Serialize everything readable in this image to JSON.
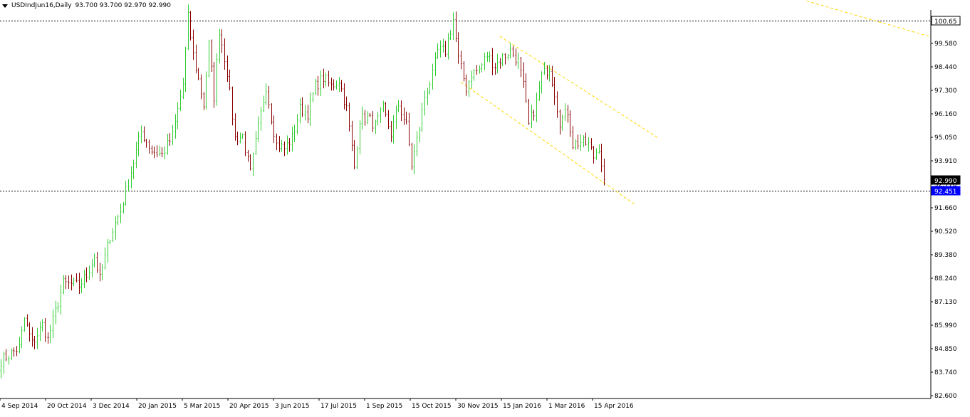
{
  "header": {
    "symbol_timeframe": "USDIndJun16,Daily",
    "ohlc": "93.700 93.700 92.970 92.990"
  },
  "colors": {
    "bull": "#32cd32",
    "bear": "#8b0000",
    "trendline": "#ffd700",
    "price_tag_bg": "#0000ff",
    "current_tag_bg": "#000000",
    "hline": "#000000"
  },
  "chart_data": {
    "type": "ohlc",
    "symbol": "USDIndJun16",
    "timeframe": "Daily",
    "y_axis_labels": [
      "100.65",
      "99.580",
      "98.440",
      "97.300",
      "96.160",
      "95.050",
      "93.910",
      "92.770",
      "91.660",
      "90.520",
      "89.380",
      "88.240",
      "87.130",
      "85.990",
      "84.850",
      "83.740",
      "82.600"
    ],
    "x_axis_labels": [
      "4 Sep 2014",
      "20 Oct 2014",
      "3 Dec 2014",
      "20 Jan 2015",
      "5 Mar 2015",
      "20 Apr 2015",
      "3 Jun 2015",
      "17 Jul 2015",
      "1 Sep 2015",
      "15 Oct 2015",
      "30 Nov 2015",
      "15 Jan 2016",
      "1 Mar 2016",
      "15 Apr 2016"
    ],
    "ylim": [
      82.6,
      101.2
    ],
    "horizontal_lines": [
      {
        "value": 100.65,
        "label": "100.65",
        "label_bg": "#ffffff"
      },
      {
        "value": 92.451,
        "label": "92.451",
        "label_bg": "#0000ff"
      }
    ],
    "current_price": {
      "value": 92.99,
      "label": "92.990"
    },
    "trendlines": [
      {
        "name": "channel-upper",
        "from": {
          "bar": 192,
          "price": 99.9
        },
        "to": {
          "bar": 253,
          "price": 95.0
        }
      },
      {
        "name": "channel-lower",
        "from": {
          "bar": 177,
          "price": 97.7
        },
        "to": {
          "bar": 244,
          "price": 91.8
        }
      },
      {
        "name": "top-right-line",
        "from": {
          "bar": 310,
          "price": 101.6
        },
        "to": {
          "bar": 357,
          "price": 99.9
        }
      }
    ],
    "anchors": [
      [
        0,
        84.3
      ],
      [
        7,
        84.9
      ],
      [
        9,
        86.3
      ],
      [
        12,
        85.1
      ],
      [
        16,
        86.0
      ],
      [
        18,
        85.3
      ],
      [
        24,
        88.0
      ],
      [
        30,
        87.9
      ],
      [
        33,
        88.4
      ],
      [
        36,
        89.3
      ],
      [
        38,
        88.2
      ],
      [
        42,
        90.3
      ],
      [
        46,
        91.5
      ],
      [
        50,
        93.4
      ],
      [
        54,
        95.3
      ],
      [
        58,
        94.4
      ],
      [
        62,
        94.2
      ],
      [
        66,
        95.1
      ],
      [
        70,
        97.6
      ],
      [
        72,
        100.8
      ],
      [
        74,
        99.0
      ],
      [
        78,
        96.6
      ],
      [
        80,
        99.5
      ],
      [
        82,
        97.0
      ],
      [
        84,
        100.2
      ],
      [
        87,
        98.2
      ],
      [
        90,
        95.0
      ],
      [
        93,
        95.1
      ],
      [
        96,
        93.3
      ],
      [
        99,
        95.5
      ],
      [
        102,
        97.5
      ],
      [
        104,
        96.0
      ],
      [
        106,
        94.7
      ],
      [
        109,
        94.5
      ],
      [
        112,
        95.0
      ],
      [
        115,
        96.4
      ],
      [
        118,
        96.2
      ],
      [
        121,
        97.5
      ],
      [
        124,
        97.9
      ],
      [
        127,
        97.5
      ],
      [
        130,
        97.8
      ],
      [
        133,
        96.4
      ],
      [
        136,
        93.6
      ],
      [
        138,
        95.9
      ],
      [
        141,
        96.0
      ],
      [
        144,
        95.6
      ],
      [
        147,
        96.4
      ],
      [
        150,
        95.2
      ],
      [
        153,
        96.6
      ],
      [
        156,
        95.6
      ],
      [
        158,
        93.7
      ],
      [
        161,
        95.5
      ],
      [
        163,
        97.0
      ],
      [
        166,
        98.0
      ],
      [
        168,
        99.2
      ],
      [
        171,
        99.2
      ],
      [
        174,
        100.7
      ],
      [
        176,
        98.8
      ],
      [
        179,
        97.4
      ],
      [
        181,
        98.1
      ],
      [
        184,
        98.3
      ],
      [
        187,
        99.0
      ],
      [
        190,
        98.5
      ],
      [
        193,
        98.9
      ],
      [
        196,
        99.2
      ],
      [
        199,
        98.7
      ],
      [
        201,
        97.5
      ],
      [
        203,
        95.6
      ],
      [
        206,
        96.7
      ],
      [
        208,
        98.0
      ],
      [
        211,
        98.4
      ],
      [
        213,
        97.2
      ],
      [
        215,
        95.8
      ],
      [
        218,
        96.3
      ],
      [
        220,
        94.7
      ],
      [
        223,
        94.8
      ],
      [
        226,
        94.7
      ],
      [
        228,
        94.1
      ],
      [
        230,
        94.6
      ],
      [
        232,
        93.0
      ]
    ]
  }
}
